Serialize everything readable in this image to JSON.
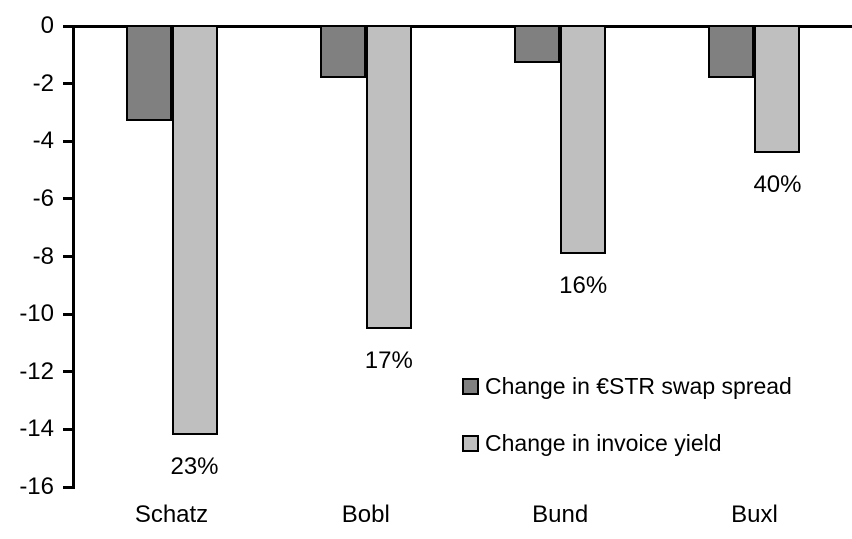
{
  "chart_data": {
    "type": "bar",
    "orientation": "vertical",
    "title": "",
    "xlabel": "",
    "ylabel": "",
    "categories": [
      "Schatz",
      "Bobl",
      "Bund",
      "Buxl"
    ],
    "series": [
      {
        "name": "Change in €STR swap spread",
        "color": "#808080",
        "values": [
          -3.3,
          -1.8,
          -1.3,
          -1.8
        ]
      },
      {
        "name": "Change in invoice yield",
        "color": "#BFBFBF",
        "values": [
          -14.2,
          -10.5,
          -7.9,
          -4.4
        ],
        "labels": [
          "23%",
          "17%",
          "16%",
          "40%"
        ]
      }
    ],
    "ylim": [
      0,
      -16
    ],
    "y_ticks": [
      0,
      -2,
      -4,
      -6,
      -8,
      -10,
      -12,
      -14,
      -16
    ],
    "grid": false,
    "legend_position": "inside-right-middle",
    "bar_outline_color": "#000000",
    "axis_color": "#000000",
    "background_color": "#FFFFFF"
  }
}
